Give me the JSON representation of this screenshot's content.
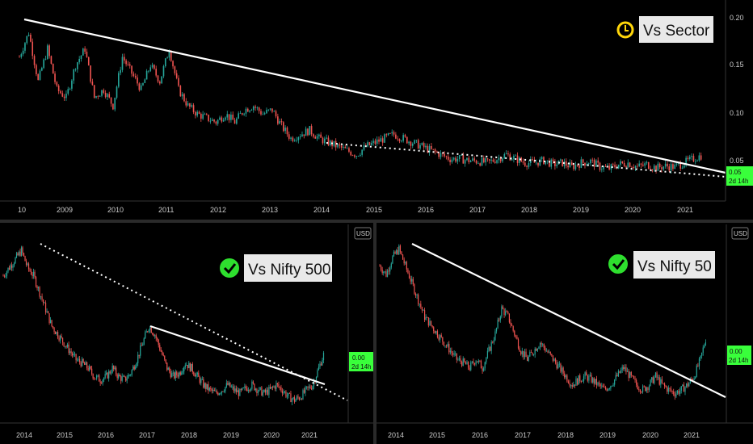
{
  "chart_data": [
    {
      "id": "top",
      "type": "candlestick",
      "title": "Vs Sector",
      "badge_icon": "clock-icon",
      "x_ticks": [
        "10",
        "2009",
        "2010",
        "2011",
        "2012",
        "2013",
        "2014",
        "2015",
        "2016",
        "2017",
        "2018",
        "2019",
        "2020",
        "2021"
      ],
      "y_ticks": [
        "0.20",
        "0.15",
        "0.10",
        "0.05"
      ],
      "ylim": [
        0,
        0.21
      ],
      "last_value_label": "0.05",
      "countdown_label": "2d 14h",
      "approx_series": [
        0.16,
        0.19,
        0.13,
        0.17,
        0.12,
        0.11,
        0.15,
        0.17,
        0.11,
        0.12,
        0.1,
        0.16,
        0.14,
        0.12,
        0.15,
        0.13,
        0.17,
        0.12,
        0.1,
        0.09,
        0.085,
        0.08,
        0.09,
        0.08,
        0.095,
        0.1,
        0.09,
        0.095,
        0.075,
        0.06,
        0.065,
        0.07,
        0.06,
        0.055,
        0.05,
        0.045,
        0.04,
        0.05,
        0.055,
        0.06,
        0.065,
        0.06,
        0.055,
        0.05,
        0.045,
        0.04,
        0.035,
        0.035,
        0.033,
        0.032,
        0.03,
        0.035,
        0.04,
        0.035,
        0.03,
        0.03,
        0.033,
        0.028,
        0.03,
        0.025,
        0.03,
        0.032,
        0.025,
        0.023,
        0.028,
        0.03,
        0.025,
        0.028,
        0.024,
        0.026,
        0.025,
        0.03,
        0.035,
        0.04
      ]
    },
    {
      "id": "bottom-left",
      "type": "candlestick",
      "title": "Vs Nifty 500",
      "badge_icon": "check-icon",
      "currency": "USD",
      "x_ticks": [
        "2014",
        "2015",
        "2016",
        "2017",
        "2018",
        "2019",
        "2020",
        "2021"
      ],
      "last_value_label": "0.00",
      "countdown_label": "2d 14h",
      "approx_series": [
        0.8,
        0.85,
        0.9,
        0.95,
        0.85,
        0.8,
        0.7,
        0.6,
        0.5,
        0.45,
        0.4,
        0.35,
        0.3,
        0.28,
        0.25,
        0.2,
        0.18,
        0.2,
        0.25,
        0.2,
        0.18,
        0.22,
        0.3,
        0.4,
        0.5,
        0.45,
        0.35,
        0.25,
        0.2,
        0.22,
        0.28,
        0.25,
        0.2,
        0.15,
        0.12,
        0.1,
        0.12,
        0.15,
        0.12,
        0.1,
        0.13,
        0.15,
        0.12,
        0.1,
        0.12,
        0.15,
        0.12,
        0.08,
        0.06,
        0.08,
        0.12,
        0.15,
        0.25,
        0.35
      ]
    },
    {
      "id": "bottom-right",
      "type": "candlestick",
      "title": "Vs Nifty 50",
      "badge_icon": "check-icon",
      "currency": "USD",
      "x_ticks": [
        "2014",
        "2015",
        "2016",
        "2017",
        "2018",
        "2019",
        "2020",
        "2021"
      ],
      "last_value_label": "0.00",
      "countdown_label": "2d 14h",
      "approx_series": [
        0.85,
        0.8,
        0.9,
        0.95,
        0.85,
        0.75,
        0.65,
        0.55,
        0.5,
        0.45,
        0.4,
        0.35,
        0.3,
        0.28,
        0.25,
        0.3,
        0.25,
        0.35,
        0.45,
        0.6,
        0.55,
        0.45,
        0.35,
        0.3,
        0.35,
        0.4,
        0.35,
        0.3,
        0.25,
        0.2,
        0.15,
        0.18,
        0.2,
        0.18,
        0.15,
        0.12,
        0.15,
        0.2,
        0.25,
        0.2,
        0.15,
        0.12,
        0.15,
        0.2,
        0.15,
        0.12,
        0.1,
        0.12,
        0.15,
        0.2,
        0.3,
        0.45
      ]
    }
  ],
  "colors": {
    "up": "#26a69a",
    "down": "#ef5350",
    "price_label": "#39ff3b",
    "trendline": "#ffffff",
    "clock_badge": "#ffd60a",
    "check_badge": "#2edf2e"
  }
}
